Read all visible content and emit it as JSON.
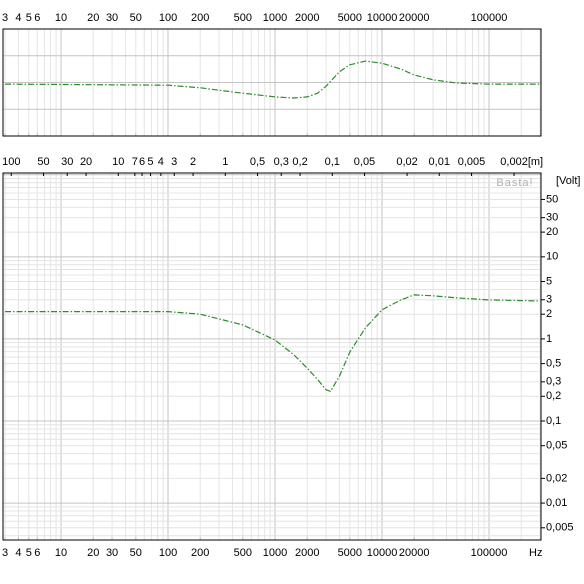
{
  "chart_data": [
    {
      "type": "line",
      "x": [
        3,
        100,
        200,
        500,
        1000,
        1500,
        2000,
        2500,
        3000,
        4000,
        5000,
        7000,
        10000,
        15000,
        20000,
        30000,
        50000,
        100000,
        300000
      ],
      "series": [
        {
          "color": "#2e8b2e",
          "values": [
            -0.03,
            -0.05,
            -0.1,
            -0.2,
            -0.27,
            -0.29,
            -0.27,
            -0.2,
            -0.07,
            0.2,
            0.33,
            0.4,
            0.36,
            0.25,
            0.14,
            0.05,
            -0.01,
            -0.03,
            -0.03
          ]
        }
      ],
      "xlim": [
        2.87,
        306000
      ],
      "log_x": true,
      "xticks": [
        3,
        4,
        5,
        6,
        10,
        20,
        30,
        50,
        100,
        200,
        500,
        1000,
        2000,
        5000,
        10000,
        20000,
        100000
      ],
      "ylim": [
        -1,
        1
      ],
      "grid": true
    },
    {
      "type": "line",
      "x": [
        3,
        100,
        200,
        500,
        1000,
        1500,
        2000,
        2500,
        3000,
        3300,
        4000,
        5000,
        7000,
        10000,
        15000,
        20000,
        30000,
        50000,
        100000,
        300000
      ],
      "series": [
        {
          "color": "#2e8b2e",
          "values": [
            2.15,
            2.15,
            2.0,
            1.48,
            0.97,
            0.64,
            0.44,
            0.32,
            0.24,
            0.23,
            0.35,
            0.69,
            1.36,
            2.26,
            2.99,
            3.44,
            3.35,
            3.16,
            2.99,
            2.9
          ]
        }
      ],
      "xlim": [
        2.87,
        306000
      ],
      "log_x": true,
      "xticks": [
        3,
        4,
        5,
        6,
        10,
        20,
        30,
        50,
        100,
        200,
        500,
        1000,
        2000,
        5000,
        10000,
        20000,
        100000
      ],
      "x_unit": "Hz",
      "x2lim": [
        119.5,
        0.00112
      ],
      "x2ticks": [
        100,
        50,
        30,
        20,
        10,
        7,
        6,
        5,
        4,
        3,
        2,
        1,
        {
          "value": 0.5,
          "label": "0,5"
        },
        {
          "value": 0.3,
          "label": "0,3"
        },
        {
          "value": 0.2,
          "label": "0,2"
        },
        {
          "value": 0.1,
          "label": "0,1"
        },
        {
          "value": 0.05,
          "label": "0,05"
        },
        {
          "value": 0.02,
          "label": "0,02"
        },
        {
          "value": 0.01,
          "label": "0,01"
        },
        {
          "value": 0.005,
          "label": "0,005"
        },
        {
          "value": 0.002,
          "label": "0,002"
        }
      ],
      "x2_unit": "[m]",
      "ylim": [
        0.00355,
        105
      ],
      "log_y": true,
      "yticks": [
        50,
        30,
        20,
        10,
        5,
        3,
        2,
        1,
        {
          "value": 0.5,
          "label": "0,5"
        },
        {
          "value": 0.3,
          "label": "0,3"
        },
        {
          "value": 0.2,
          "label": "0,2"
        },
        {
          "value": 0.1,
          "label": "0,1"
        },
        {
          "value": 0.05,
          "label": "0,05"
        },
        {
          "value": 0.02,
          "label": "0,02"
        },
        {
          "value": 0.01,
          "label": "0,01"
        },
        {
          "value": 0.005,
          "label": "0,005"
        }
      ],
      "y_unit": "[Volt]",
      "watermark": "Basta!",
      "grid": true
    }
  ]
}
